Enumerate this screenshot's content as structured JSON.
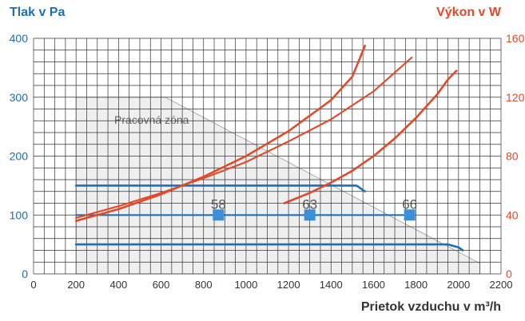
{
  "chart_data": {
    "type": "line",
    "left_axis_label": "Tlak v Pa",
    "right_axis_label": "Výkon v W",
    "xlabel": "Prietok vzduchu v m³/h",
    "zone_label": "Pracovná zóna",
    "xlim": [
      0,
      2200
    ],
    "ylim_left": [
      0,
      400
    ],
    "ylim_right": [
      0,
      160
    ],
    "x_ticks": [
      "0",
      "200",
      "400",
      "600",
      "800",
      "1000",
      "1200",
      "1400",
      "1600",
      "1800",
      "2000",
      "2200"
    ],
    "y_left_ticks": [
      "0",
      "100",
      "200",
      "300",
      "400"
    ],
    "y_right_ticks": [
      "0",
      "40",
      "80",
      "120",
      "160"
    ],
    "grid": true,
    "colors": {
      "pressure": "#1a6fb5",
      "power": "#e04a2a",
      "zone": "#efefef",
      "grid": "#333333"
    },
    "working_zone_polygon": [
      [
        200,
        0
      ],
      [
        200,
        300
      ],
      [
        620,
        300
      ],
      [
        2100,
        18
      ],
      [
        2100,
        0
      ]
    ],
    "pressure_series": [
      {
        "style": "dotted-dense",
        "points": [
          [
            200,
            150
          ],
          [
            1520,
            150
          ],
          [
            1560,
            140
          ]
        ]
      },
      {
        "style": "dotted",
        "points": [
          [
            200,
            100
          ],
          [
            1770,
            100
          ]
        ]
      },
      {
        "style": "solid",
        "points": [
          [
            200,
            50
          ],
          [
            1950,
            50
          ],
          [
            2000,
            45
          ],
          [
            2020,
            40
          ]
        ]
      }
    ],
    "power_series": [
      {
        "style": "dotted-dense",
        "points": [
          [
            200,
            36
          ],
          [
            400,
            44
          ],
          [
            600,
            54
          ],
          [
            800,
            66
          ],
          [
            1000,
            80
          ],
          [
            1200,
            97
          ],
          [
            1400,
            118
          ],
          [
            1500,
            134
          ],
          [
            1560,
            155
          ]
        ]
      },
      {
        "style": "dotted",
        "points": [
          [
            200,
            38
          ],
          [
            400,
            46
          ],
          [
            600,
            55
          ],
          [
            800,
            65
          ],
          [
            1000,
            76
          ],
          [
            1200,
            90
          ],
          [
            1400,
            105
          ],
          [
            1600,
            124
          ],
          [
            1780,
            147
          ]
        ]
      },
      {
        "style": "solid",
        "points": [
          [
            1180,
            48
          ],
          [
            1300,
            55
          ],
          [
            1400,
            62
          ],
          [
            1500,
            70
          ],
          [
            1600,
            80
          ],
          [
            1700,
            92
          ],
          [
            1800,
            106
          ],
          [
            1900,
            122
          ],
          [
            1950,
            132
          ],
          [
            1990,
            138
          ]
        ]
      }
    ],
    "markers": [
      {
        "x": 870,
        "y": 100,
        "label": "58"
      },
      {
        "x": 1300,
        "y": 100,
        "label": "63"
      },
      {
        "x": 1770,
        "y": 100,
        "label": "66"
      }
    ]
  }
}
